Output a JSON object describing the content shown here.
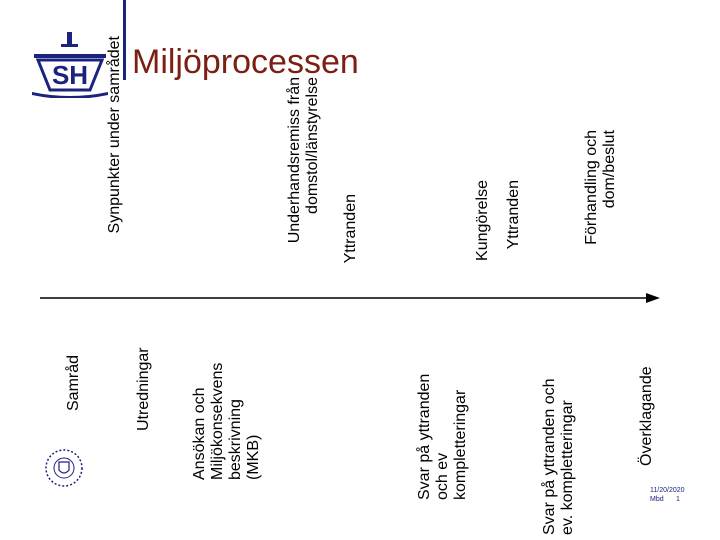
{
  "header": {
    "title": "Miljöprocessen",
    "logo_text": "SH"
  },
  "timeline": {
    "above": [
      {
        "label": "Synpunkter under samrådet"
      },
      {
        "label": "Underhandsremiss från\ndomstol/länstyrelse"
      },
      {
        "label": "Yttranden"
      },
      {
        "label": "Kungörelse"
      },
      {
        "label": "Yttranden"
      },
      {
        "label": "Förhandling och\ndom/beslut"
      }
    ],
    "below": [
      {
        "label": "Samråd"
      },
      {
        "label": "Utredningar"
      },
      {
        "label": "Ansökan och\nMiljökonsekvens\nbeskrivning\n(MKB)"
      },
      {
        "label": "Svar på yttranden\noch ev\nkompletteringar"
      },
      {
        "label": "Svar på yttranden och\nev. kompletteringar"
      },
      {
        "label": "Överklagande"
      }
    ]
  },
  "footer": {
    "date": "11/20/2020",
    "author": "Mbd",
    "page": "1"
  },
  "colors": {
    "title": "#7a1f12",
    "accent": "#1a237e",
    "arrow": "#000000"
  }
}
